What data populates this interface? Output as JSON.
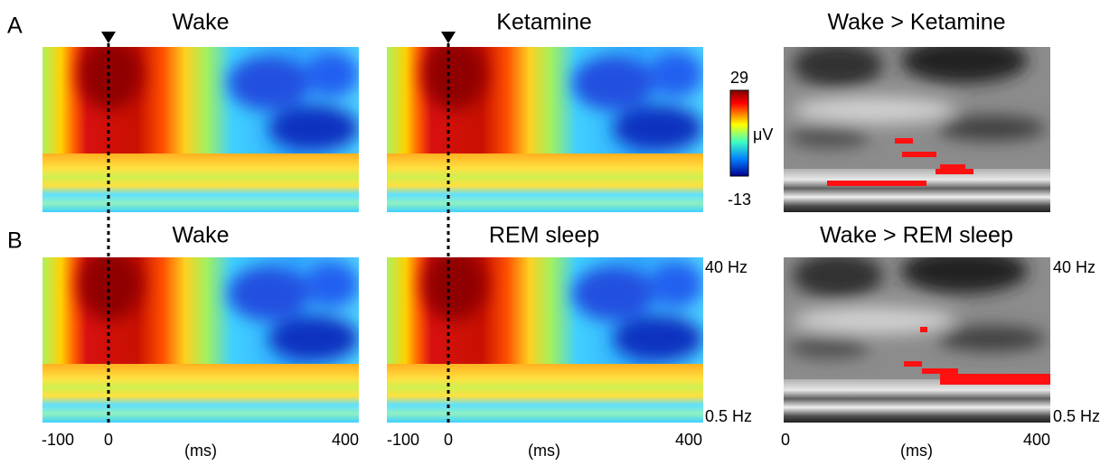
{
  "panels": [
    {
      "label": "A",
      "titles": [
        "Wake",
        "Ketamine",
        "Wake > Ketamine"
      ]
    },
    {
      "label": "B",
      "titles": [
        "Wake",
        "REM sleep",
        "Wake > REM sleep"
      ]
    }
  ],
  "colorbar": {
    "max": 29,
    "min": -13,
    "unit": "μV"
  },
  "freq_axis": {
    "top": "40 Hz",
    "bottom": "0.5 Hz"
  },
  "time_axis": {
    "ticks": [
      -100,
      0,
      400
    ],
    "label": "(ms)"
  }
}
